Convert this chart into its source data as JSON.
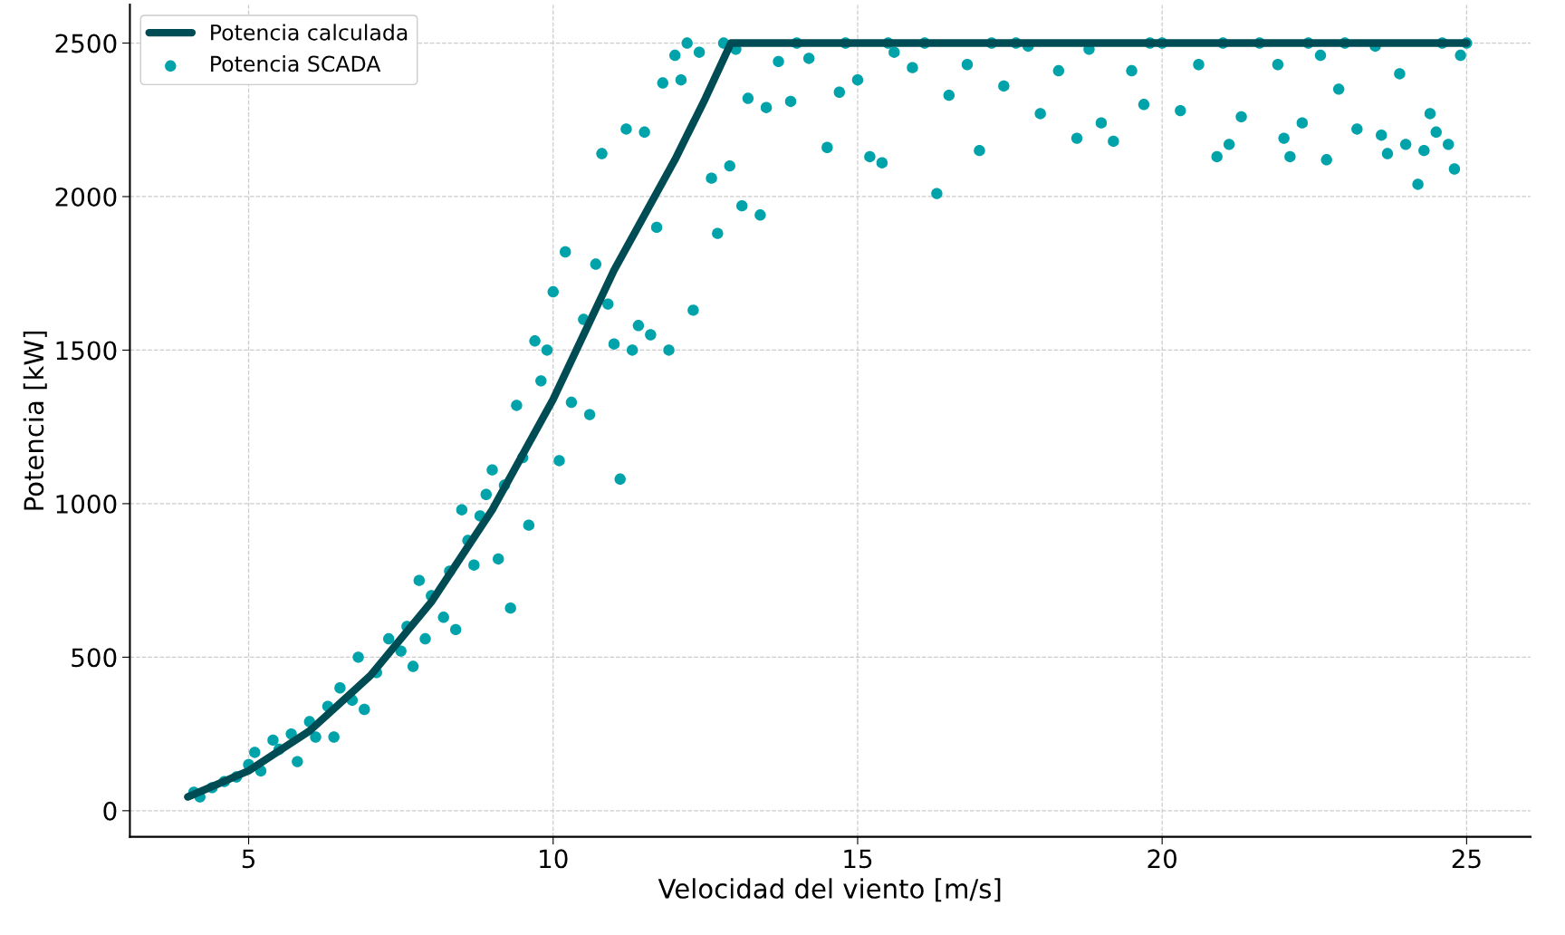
{
  "chart_data": {
    "type": "scatter",
    "xlabel": "Velocidad del viento [m/s]",
    "ylabel": "Potencia [kW]",
    "xlim": [
      3.05,
      26.05
    ],
    "xticks": [
      5,
      10,
      15,
      20,
      25
    ],
    "ylim": [
      -85,
      2625
    ],
    "yticks": [
      0,
      500,
      1000,
      1500,
      2000,
      2500
    ],
    "grid": true,
    "legend": "top left",
    "series": [
      {
        "name": "Potencia calculada",
        "type": "line",
        "color": "#004c54",
        "line_style": "solid",
        "x": [
          4,
          5,
          6,
          7,
          8,
          9,
          10,
          11,
          12,
          12.5,
          12.92,
          25
        ],
        "values": [
          45,
          130,
          260,
          440,
          680,
          980,
          1340,
          1760,
          2120,
          2320,
          2500,
          2500
        ]
      },
      {
        "name": "Potencia SCADA",
        "marker": "circle",
        "color": "#00a3aa",
        "x": [
          4.1,
          4.2,
          4.4,
          4.6,
          4.8,
          5.0,
          5.1,
          5.2,
          5.4,
          5.5,
          5.7,
          5.8,
          6.0,
          6.1,
          6.3,
          6.4,
          6.5,
          6.7,
          6.8,
          6.9,
          7.1,
          7.3,
          7.5,
          7.6,
          7.7,
          7.8,
          7.9,
          8.0,
          8.2,
          8.3,
          8.4,
          8.5,
          8.6,
          8.7,
          8.8,
          8.9,
          9.0,
          9.1,
          9.2,
          9.3,
          9.4,
          9.5,
          9.6,
          9.7,
          9.8,
          9.9,
          10.0,
          10.1,
          10.2,
          10.3,
          10.5,
          10.6,
          10.7,
          10.8,
          10.9,
          11.0,
          11.1,
          11.2,
          11.3,
          11.4,
          11.5,
          11.6,
          11.7,
          11.8,
          11.9,
          12.0,
          12.1,
          12.2,
          12.3,
          12.4,
          12.6,
          12.7,
          12.8,
          12.9,
          13.0,
          13.1,
          13.2,
          13.4,
          13.5,
          13.7,
          13.9,
          14.0,
          14.2,
          14.5,
          14.7,
          14.8,
          15.0,
          15.2,
          15.4,
          15.5,
          15.6,
          15.9,
          16.1,
          16.3,
          16.5,
          16.8,
          17.0,
          17.2,
          17.4,
          17.6,
          17.8,
          18.0,
          18.3,
          18.6,
          18.8,
          19.0,
          19.2,
          19.5,
          19.7,
          19.8,
          20.0,
          20.3,
          20.6,
          20.9,
          21.0,
          21.1,
          21.3,
          21.6,
          21.9,
          22.0,
          22.1,
          22.3,
          22.4,
          22.6,
          22.7,
          22.9,
          23.0,
          23.2,
          23.5,
          23.6,
          23.7,
          23.9,
          24.0,
          24.2,
          24.3,
          24.4,
          24.5,
          24.6,
          24.7,
          24.8,
          24.9,
          25.0
        ],
        "values": [
          60,
          45,
          75,
          95,
          110,
          150,
          190,
          130,
          230,
          200,
          250,
          160,
          290,
          240,
          340,
          240,
          400,
          360,
          500,
          330,
          450,
          560,
          520,
          600,
          470,
          750,
          560,
          700,
          630,
          780,
          590,
          980,
          880,
          800,
          960,
          1030,
          1110,
          820,
          1060,
          660,
          1320,
          1150,
          930,
          1530,
          1400,
          1500,
          1690,
          1140,
          1820,
          1330,
          1600,
          1290,
          1780,
          2140,
          1650,
          1520,
          1080,
          2220,
          1500,
          1580,
          2210,
          1550,
          1900,
          2370,
          1500,
          2460,
          2380,
          2500,
          1630,
          2470,
          2060,
          1880,
          2500,
          2100,
          2480,
          1970,
          2320,
          1940,
          2290,
          2440,
          2310,
          2500,
          2450,
          2160,
          2340,
          2500,
          2380,
          2130,
          2110,
          2500,
          2470,
          2420,
          2500,
          2010,
          2330,
          2430,
          2150,
          2500,
          2360,
          2500,
          2490,
          2270,
          2410,
          2190,
          2480,
          2240,
          2180,
          2410,
          2300,
          2500,
          2500,
          2280,
          2430,
          2130,
          2500,
          2170,
          2260,
          2500,
          2430,
          2190,
          2130,
          2240,
          2500,
          2460,
          2120,
          2350,
          2500,
          2220,
          2490,
          2200,
          2140,
          2400,
          2170,
          2040,
          2150,
          2270,
          2210,
          2500,
          2170,
          2090,
          2460,
          2500
        ]
      }
    ]
  }
}
